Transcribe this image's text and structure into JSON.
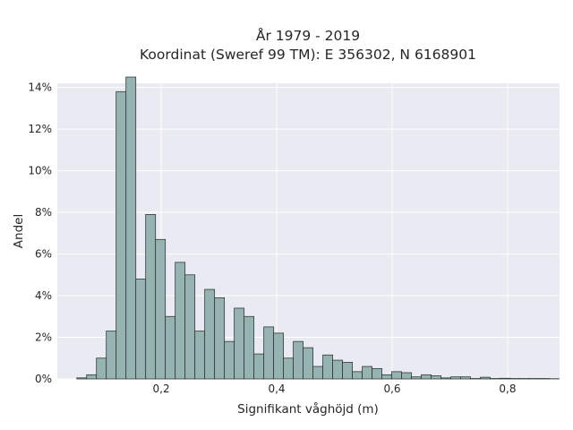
{
  "chart_data": {
    "type": "bar",
    "title_lines": [
      "År 1979 - 2019",
      "Koordinat (Sweref 99 TM): E 356302, N 6168901"
    ],
    "xlabel": "Signifikant våghöjd (m)",
    "ylabel": "Andel",
    "xlim": [
      0.02,
      0.89
    ],
    "ylim": [
      0,
      14.2
    ],
    "grid": true,
    "x_ticks": [
      {
        "value": 0.2,
        "label": "0,2"
      },
      {
        "value": 0.4,
        "label": "0,4"
      },
      {
        "value": 0.6,
        "label": "0,6"
      },
      {
        "value": 0.8,
        "label": "0,8"
      }
    ],
    "y_ticks": [
      {
        "value": 0,
        "label": "0%"
      },
      {
        "value": 2,
        "label": "2%"
      },
      {
        "value": 4,
        "label": "4%"
      },
      {
        "value": 6,
        "label": "6%"
      },
      {
        "value": 8,
        "label": "8%"
      },
      {
        "value": 10,
        "label": "10%"
      },
      {
        "value": 12,
        "label": "12%"
      },
      {
        "value": 14,
        "label": "14%"
      }
    ],
    "bin_start": 0.0537,
    "bin_width": 0.01705,
    "values": [
      0.05,
      0.2,
      1.0,
      2.3,
      13.8,
      14.5,
      4.8,
      7.9,
      6.7,
      3.0,
      5.6,
      5.0,
      2.3,
      4.3,
      3.9,
      1.8,
      3.4,
      3.0,
      1.2,
      2.5,
      2.2,
      1.0,
      1.8,
      1.5,
      0.6,
      1.15,
      0.9,
      0.8,
      0.35,
      0.6,
      0.5,
      0.2,
      0.35,
      0.3,
      0.1,
      0.2,
      0.15,
      0.05,
      0.1,
      0.1,
      0.02,
      0.08,
      0.02,
      0.03,
      0.02,
      0.02,
      0.02,
      0.02,
      0.01
    ],
    "colors": {
      "bar_fill": "#97b3b1",
      "bar_stroke": "#2f3b3a",
      "plot_bg": "#eaeaf2",
      "grid": "#ffffff"
    }
  }
}
